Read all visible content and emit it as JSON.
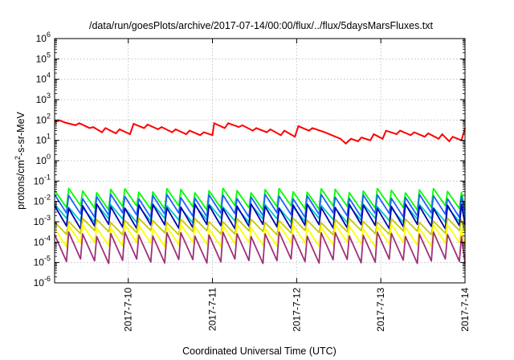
{
  "chart_data": {
    "type": "line",
    "title": "/data/run/goesPlots/archive/2017-07-14/00:00/flux/../flux/5daysMarsFluxes.txt",
    "xlabel": "Coordinated Universal Time (UTC)",
    "ylabel": "protons/cm2-s-sr-MeV",
    "ylabel_parts": {
      "pre": "protons/cm",
      "sup": "2",
      "post": "-s-sr-MeV"
    },
    "yscale": "log",
    "ylim": [
      1e-06,
      1000000.0
    ],
    "y_ticks": [
      {
        "base": "10",
        "exp": "-6"
      },
      {
        "base": "10",
        "exp": "-5"
      },
      {
        "base": "10",
        "exp": "-4"
      },
      {
        "base": "10",
        "exp": "-3"
      },
      {
        "base": "10",
        "exp": "-2"
      },
      {
        "base": "10",
        "exp": "-1"
      },
      {
        "base": "10",
        "exp": "0"
      },
      {
        "base": "10",
        "exp": "1"
      },
      {
        "base": "10",
        "exp": "2"
      },
      {
        "base": "10",
        "exp": "3"
      },
      {
        "base": "10",
        "exp": "4"
      },
      {
        "base": "10",
        "exp": "5"
      },
      {
        "base": "10",
        "exp": "6"
      }
    ],
    "x_start": "2017-07-09 03:00",
    "x_end": "2017-07-14 00:00",
    "x_ticks": [
      {
        "label": "2017-7-10",
        "time": "2017-07-10 00:00"
      },
      {
        "label": "2017-7-11",
        "time": "2017-07-11 00:00"
      },
      {
        "label": "2017-7-12",
        "time": "2017-07-12 00:00"
      },
      {
        "label": "2017-7-13",
        "time": "2017-07-13 00:00"
      },
      {
        "label": "2017-7-14",
        "time": "2017-07-14 00:00"
      }
    ],
    "grid": true,
    "series": [
      {
        "color": "#ff0000",
        "points": [
          [
            "2017-07-09 03:00",
            80
          ],
          [
            "2017-07-09 04:30",
            95
          ],
          [
            "2017-07-09 06:00",
            75
          ],
          [
            "2017-07-09 09:00",
            55
          ],
          [
            "2017-07-09 10:00",
            70
          ],
          [
            "2017-07-09 13:00",
            40
          ],
          [
            "2017-07-09 14:00",
            45
          ],
          [
            "2017-07-09 16:30",
            25
          ],
          [
            "2017-07-09 17:30",
            40
          ],
          [
            "2017-07-09 20:30",
            22
          ],
          [
            "2017-07-09 21:30",
            35
          ],
          [
            "2017-07-10 00:30",
            20
          ],
          [
            "2017-07-10 01:30",
            65
          ],
          [
            "2017-07-10 04:30",
            40
          ],
          [
            "2017-07-10 05:30",
            60
          ],
          [
            "2017-07-10 08:30",
            35
          ],
          [
            "2017-07-10 09:30",
            45
          ],
          [
            "2017-07-10 12:30",
            25
          ],
          [
            "2017-07-10 13:30",
            35
          ],
          [
            "2017-07-10 16:30",
            20
          ],
          [
            "2017-07-10 17:30",
            30
          ],
          [
            "2017-07-10 20:30",
            18
          ],
          [
            "2017-07-10 21:30",
            25
          ],
          [
            "2017-07-11 00:00",
            18
          ],
          [
            "2017-07-11 00:30",
            70
          ],
          [
            "2017-07-11 03:30",
            40
          ],
          [
            "2017-07-11 04:30",
            70
          ],
          [
            "2017-07-11 07:30",
            45
          ],
          [
            "2017-07-11 08:30",
            55
          ],
          [
            "2017-07-11 11:30",
            30
          ],
          [
            "2017-07-11 12:30",
            40
          ],
          [
            "2017-07-11 15:30",
            25
          ],
          [
            "2017-07-11 16:30",
            35
          ],
          [
            "2017-07-11 19:30",
            18
          ],
          [
            "2017-07-11 20:30",
            30
          ],
          [
            "2017-07-11 23:30",
            15
          ],
          [
            "2017-07-12 00:30",
            50
          ],
          [
            "2017-07-12 03:30",
            30
          ],
          [
            "2017-07-12 04:30",
            40
          ],
          [
            "2017-07-12 08:00",
            25
          ],
          [
            "2017-07-12 10:00",
            18
          ],
          [
            "2017-07-12 12:30",
            12
          ],
          [
            "2017-07-12 13:00",
            10
          ],
          [
            "2017-07-12 14:00",
            7
          ],
          [
            "2017-07-12 15:30",
            12
          ],
          [
            "2017-07-12 17:30",
            9
          ],
          [
            "2017-07-12 18:30",
            14
          ],
          [
            "2017-07-12 21:00",
            10
          ],
          [
            "2017-07-12 22:00",
            20
          ],
          [
            "2017-07-13 00:30",
            12
          ],
          [
            "2017-07-13 01:30",
            30
          ],
          [
            "2017-07-13 04:30",
            20
          ],
          [
            "2017-07-13 05:30",
            30
          ],
          [
            "2017-07-13 08:30",
            18
          ],
          [
            "2017-07-13 09:30",
            25
          ],
          [
            "2017-07-13 12:30",
            15
          ],
          [
            "2017-07-13 13:30",
            22
          ],
          [
            "2017-07-13 16:30",
            12
          ],
          [
            "2017-07-13 17:30",
            20
          ],
          [
            "2017-07-13 19:30",
            9
          ],
          [
            "2017-07-13 20:30",
            15
          ],
          [
            "2017-07-13 23:00",
            10
          ],
          [
            "2017-07-14 00:00",
            40
          ]
        ]
      },
      {
        "color": "#00ff00",
        "baseline": 0.005,
        "peak": 0.035,
        "drift": 0.0
      },
      {
        "color": "#2060ff",
        "baseline": 0.0022,
        "peak": 0.018,
        "drift": 0.0
      },
      {
        "color": "#00c8c8",
        "baseline": 0.0012,
        "peak": 0.006,
        "drift": 0.0
      },
      {
        "color": "#0000b0",
        "baseline": 0.0006,
        "peak": 0.006,
        "drift": 0.0
      },
      {
        "color": "#c8c800",
        "baseline": 0.0003,
        "peak": 0.0012,
        "drift": 0.0
      },
      {
        "color": "#ffff00",
        "baseline": 8e-05,
        "peak": 0.0006,
        "drift": 0.0
      },
      {
        "color": "#a0307a",
        "baseline": 1.2e-05,
        "peak": 0.00025,
        "drift": 0.0
      }
    ],
    "sawtooth_period_hours": 4
  }
}
